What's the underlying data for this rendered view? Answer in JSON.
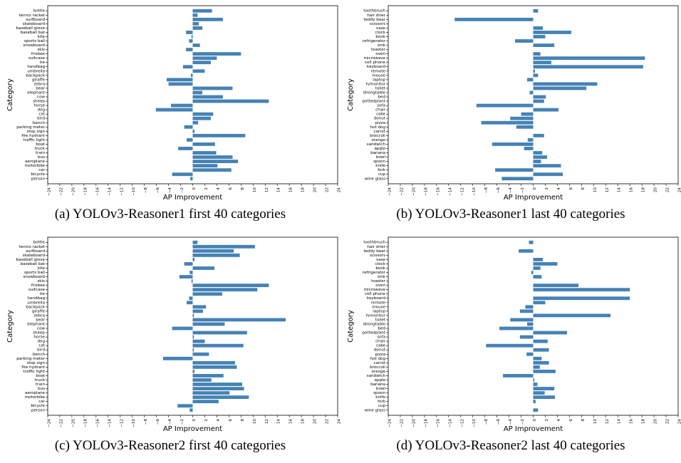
{
  "colors": {
    "bar": "#4682b4",
    "axis": "#000000",
    "text": "#000000"
  },
  "chart_data": [
    {
      "type": "bar",
      "orientation": "horizontal",
      "caption": "(a) YOLOv3-Reasoner1 first 40 categories",
      "xlabel": "AP Improvement",
      "ylabel": "Category",
      "xlim": [
        -24,
        24
      ],
      "xticks": [
        "−24",
        "−22",
        "−20",
        "−18",
        "−16",
        "−14",
        "−12",
        "−10",
        "−8",
        "−6",
        "−4",
        "−2",
        "0",
        "2",
        "4",
        "6",
        "8",
        "10",
        "12",
        "14",
        "16",
        "18",
        "20",
        "22",
        "24"
      ],
      "grid": false,
      "categories": [
        "bottle",
        "tennis racket",
        "surfboard",
        "skateboard",
        "baseball glove",
        "baseball bat",
        "kite",
        "sports ball",
        "snowboard",
        "skis",
        "frisbee",
        "suitcase",
        "tie",
        "handbag",
        "umbrella",
        "backpack",
        "giraffe",
        "zebra",
        "bear",
        "elephant",
        "cow",
        "sheep",
        "horse",
        "dog",
        "cat",
        "bird",
        "bench",
        "parking meter",
        "stop sign",
        "fire hydrant",
        "traffic light",
        "boat",
        "truck",
        "train",
        "bus",
        "aeroplane",
        "motorbike",
        "car",
        "bicycle",
        "person"
      ],
      "values": [
        3.2,
        0.8,
        5.0,
        1.0,
        1.6,
        -1.1,
        -0.2,
        -0.6,
        1.2,
        -1.1,
        8.0,
        4.0,
        3.0,
        -1.6,
        2.0,
        -0.3,
        -4.3,
        -4.0,
        6.6,
        1.6,
        5.0,
        12.6,
        -3.6,
        -6.1,
        3.4,
        3.0,
        0.9,
        -1.4,
        0.3,
        8.7,
        -1.0,
        3.7,
        -2.4,
        3.9,
        6.6,
        7.5,
        4.1,
        6.4,
        -3.4,
        -0.4
      ]
    },
    {
      "type": "bar",
      "orientation": "horizontal",
      "caption": "(b) YOLOv3-Reasoner1 last 40 categories",
      "xlabel": "AP Improvement",
      "ylabel": "Category",
      "xlim": [
        -24,
        24
      ],
      "xticks": [
        "−24",
        "−22",
        "−20",
        "−18",
        "−16",
        "−14",
        "−12",
        "−10",
        "−8",
        "−6",
        "−4",
        "−2",
        "0",
        "2",
        "4",
        "6",
        "8",
        "10",
        "12",
        "14",
        "16",
        "18",
        "20",
        "22",
        "24"
      ],
      "grid": false,
      "categories": [
        "toothbrush",
        "hair drier",
        "teddy bear",
        "scissors",
        "vase",
        "clock",
        "book",
        "refrigerator",
        "sink",
        "toaster",
        "oven",
        "microwave",
        "cell phone",
        "keyboard",
        "remote",
        "mouse",
        "laptop",
        "tvmonitor",
        "toilet",
        "diningtable",
        "bed",
        "pottedplant",
        "sofa",
        "chair",
        "cake",
        "donut",
        "pizza",
        "hot dog",
        "carrot",
        "broccoli",
        "orange",
        "sandwich",
        "apple",
        "banana",
        "bowl",
        "spoon",
        "knife",
        "fork",
        "cup",
        "wine glass"
      ],
      "values": [
        0.8,
        0.0,
        -13.0,
        0.0,
        1.6,
        6.3,
        2.0,
        -3.0,
        3.5,
        0.0,
        1.2,
        18.5,
        3.0,
        18.2,
        0.3,
        0.8,
        -1.0,
        10.6,
        8.8,
        -0.6,
        2.1,
        1.8,
        -9.4,
        4.2,
        -2.0,
        -3.8,
        -8.6,
        -2.8,
        0.0,
        1.8,
        -0.9,
        -6.8,
        -1.5,
        1.5,
        2.3,
        1.3,
        4.6,
        -6.3,
        4.9,
        -5.2
      ]
    },
    {
      "type": "bar",
      "orientation": "horizontal",
      "caption": "(c) YOLOv3-Reasoner2 first 40 categories",
      "xlabel": "AP Improvement",
      "ylabel": "Category",
      "xlim": [
        -24,
        24
      ],
      "xticks": [
        "−24",
        "−22",
        "−20",
        "−18",
        "−16",
        "−14",
        "−12",
        "−10",
        "−8",
        "−6",
        "−4",
        "−2",
        "0",
        "2",
        "4",
        "6",
        "8",
        "10",
        "12",
        "14",
        "16",
        "18",
        "20",
        "22",
        "24"
      ],
      "grid": false,
      "categories": [
        "bottle",
        "tennis racket",
        "surfboard",
        "skateboard",
        "baseball glove",
        "baseball bat",
        "kite",
        "sports ball",
        "snowboard",
        "skis",
        "frisbee",
        "suitcase",
        "tie",
        "handbag",
        "umbrella",
        "backpack",
        "giraffe",
        "zebra",
        "bear",
        "elephant",
        "cow",
        "sheep",
        "horse",
        "dog",
        "cat",
        "bird",
        "bench",
        "parking meter",
        "stop sign",
        "fire hydrant",
        "traffic light",
        "boat",
        "truck",
        "train",
        "bus",
        "aeroplane",
        "motorbike",
        "car",
        "bicycle",
        "person"
      ],
      "values": [
        0.8,
        10.3,
        6.8,
        7.8,
        0.3,
        -1.4,
        3.6,
        -0.5,
        -2.2,
        -0.2,
        12.6,
        10.7,
        4.9,
        -0.6,
        -1.0,
        2.2,
        1.7,
        0.2,
        15.4,
        5.3,
        -3.4,
        9.0,
        0.2,
        2.0,
        8.4,
        0.2,
        2.7,
        -4.9,
        7.0,
        7.3,
        0.3,
        5.1,
        3.1,
        8.2,
        8.5,
        6.1,
        9.3,
        4.3,
        -2.5,
        -0.5
      ]
    },
    {
      "type": "bar",
      "orientation": "horizontal",
      "caption": "(d) YOLOv3-Reasoner2 last 40 categories",
      "xlabel": "AP Improvement",
      "ylabel": "Category",
      "xlim": [
        -24,
        24
      ],
      "xticks": [
        "−24",
        "−22",
        "−20",
        "−18",
        "−16",
        "−14",
        "−12",
        "−10",
        "−8",
        "−6",
        "−4",
        "−2",
        "0",
        "2",
        "4",
        "6",
        "8",
        "10",
        "12",
        "14",
        "16",
        "18",
        "20",
        "22",
        "24"
      ],
      "grid": false,
      "categories": [
        "toothbrush",
        "hair drier",
        "teddy bear",
        "scissors",
        "vase",
        "clock",
        "book",
        "refrigerator",
        "sink",
        "toaster",
        "oven",
        "microwave",
        "cell phone",
        "keyboard",
        "remote",
        "mouse",
        "laptop",
        "tvmonitor",
        "toilet",
        "diningtable",
        "bed",
        "pottedplant",
        "sofa",
        "chair",
        "cake",
        "donut",
        "pizza",
        "hot dog",
        "carrot",
        "broccoli",
        "orange",
        "sandwich",
        "apple",
        "banana",
        "bowl",
        "spoon",
        "knife",
        "fork",
        "cup",
        "wine glass"
      ],
      "values": [
        -0.7,
        0.0,
        -2.4,
        0.0,
        1.6,
        4.0,
        1.2,
        -0.3,
        1.4,
        0.0,
        7.5,
        16.0,
        0.0,
        16.0,
        2.0,
        -1.3,
        -2.2,
        12.8,
        -3.8,
        -1.0,
        -5.6,
        5.6,
        -2.2,
        2.4,
        -7.8,
        2.6,
        -1.1,
        1.4,
        2.6,
        1.1,
        3.7,
        -5.0,
        0.2,
        0.7,
        3.5,
        1.9,
        3.6,
        0.4,
        0.0,
        0.8
      ]
    }
  ]
}
